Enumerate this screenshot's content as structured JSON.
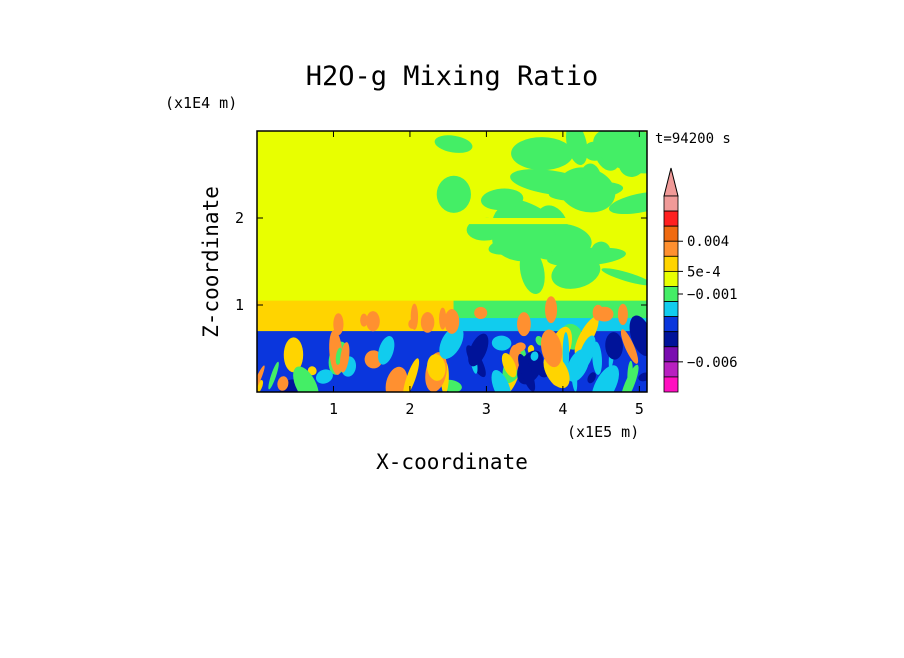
{
  "chart_data": {
    "type": "heatmap",
    "title": "H2O-g Mixing Ratio",
    "xlabel": "X-coordinate",
    "ylabel": "Z-coordinate",
    "x_units": "(x1E5 m)",
    "y_units": "(x1E4 m)",
    "time_label": "t=94200 s",
    "xlim": [
      0,
      5.1
    ],
    "ylim": [
      0,
      3.0
    ],
    "x_ticks": [
      "1",
      "2",
      "3",
      "4",
      "5"
    ],
    "x_tick_values": [
      1,
      2,
      3,
      4,
      5
    ],
    "y_ticks": [
      "1",
      "2"
    ],
    "y_tick_values": [
      1,
      2
    ],
    "colorbar": {
      "extend": "max",
      "extend_color": "#f09a98",
      "levels_top_to_bottom": [
        {
          "color": "#f09a98"
        },
        {
          "color": "#ff2020"
        },
        {
          "color": "#f06a10"
        },
        {
          "color": "#ff9030"
        },
        {
          "color": "#ffd400"
        },
        {
          "color": "#e8ff00"
        },
        {
          "color": "#44ee66"
        },
        {
          "color": "#11ccee"
        },
        {
          "color": "#0a36dd"
        },
        {
          "color": "#001399"
        },
        {
          "color": "#7a0db0"
        },
        {
          "color": "#b820c0"
        },
        {
          "color": "#ff10c0"
        }
      ],
      "labels": [
        {
          "text": "0.004",
          "value": 0.004
        },
        {
          "text": "5e-4",
          "value": 0.0005
        },
        {
          "text": "−0.001",
          "value": -0.001
        },
        {
          "text": "−0.006",
          "value": -0.006
        }
      ]
    },
    "regions": {
      "background_color": "#e8ff00",
      "lower_layer_top_z": 0.7,
      "mid_band_z": [
        0.7,
        1.05
      ],
      "split_x": 2.57,
      "right_upper_band_z": 1.95,
      "surface_color": "#0a36dd",
      "deep_color": "#001399",
      "green_color": "#44ee66",
      "cyan_color": "#11ccee",
      "orange_color": "#ff9030",
      "gold_color": "#ffd400"
    }
  }
}
